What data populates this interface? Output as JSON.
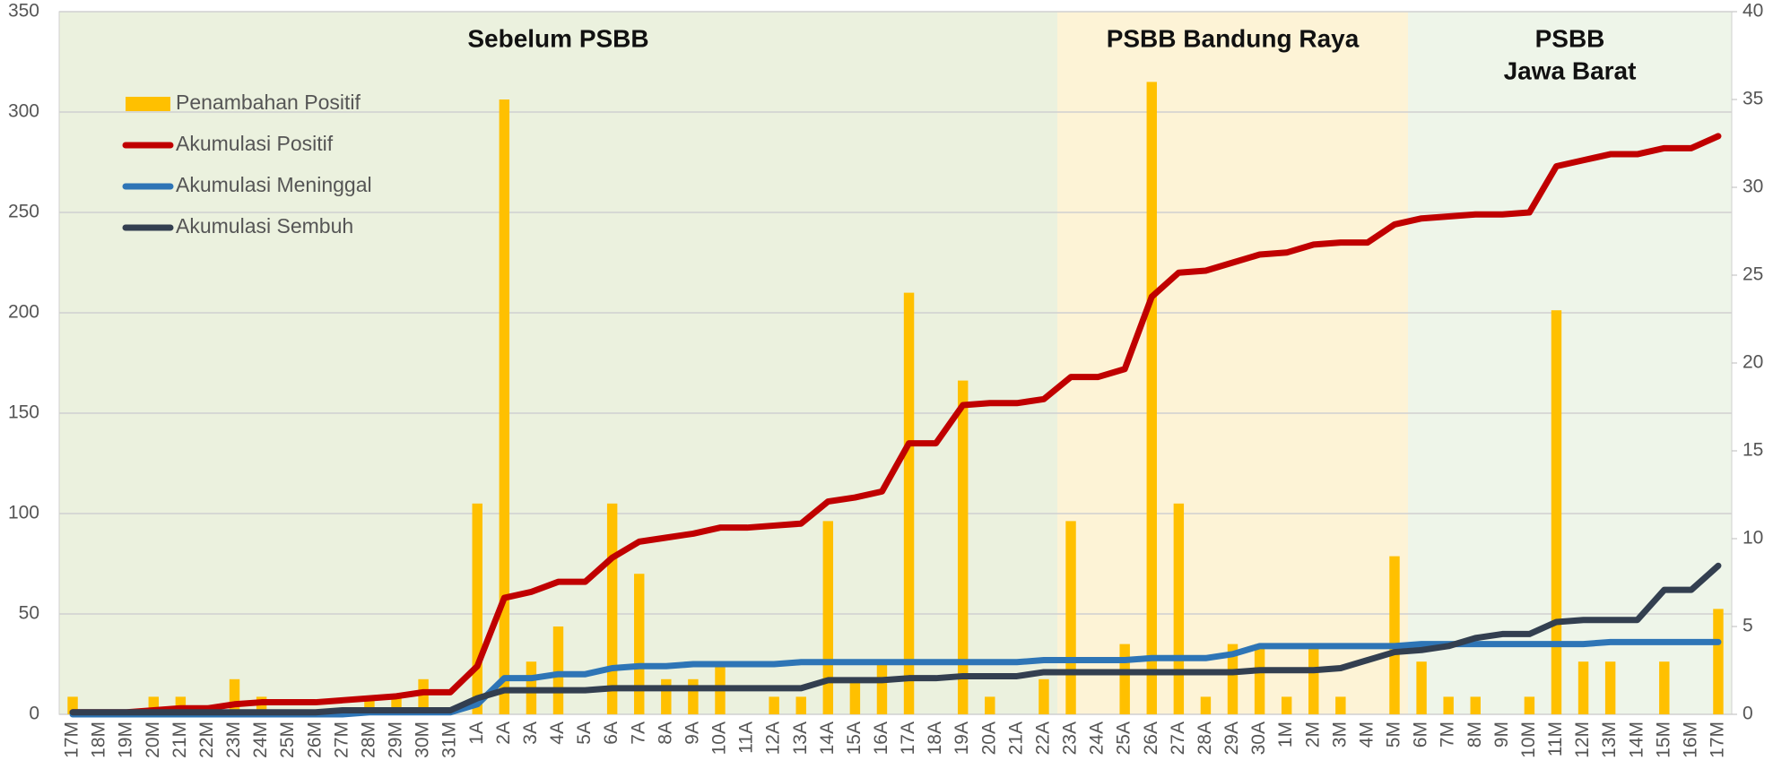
{
  "chart_data": {
    "type": "combo",
    "categories": [
      "17M",
      "18M",
      "19M",
      "20M",
      "21M",
      "22M",
      "23M",
      "24M",
      "25M",
      "26M",
      "27M",
      "28M",
      "29M",
      "30M",
      "31M",
      "1A",
      "2A",
      "3A",
      "4A",
      "5A",
      "6A",
      "7A",
      "8A",
      "9A",
      "10A",
      "11A",
      "12A",
      "13A",
      "14A",
      "15A",
      "16A",
      "17A",
      "18A",
      "19A",
      "20A",
      "21A",
      "22A",
      "23A",
      "24A",
      "25A",
      "26A",
      "27A",
      "28A",
      "29A",
      "30A",
      "1M",
      "2M",
      "3M",
      "4M",
      "5M",
      "6M",
      "7M",
      "8M",
      "9M",
      "10M",
      "11M",
      "12M",
      "13M",
      "14M",
      "15M",
      "16M",
      "17M"
    ],
    "series": [
      {
        "name": "Penambahan Positif",
        "type": "bar",
        "axis": "y2",
        "color": "#ffc000",
        "values": [
          1,
          0,
          0,
          1,
          1,
          0,
          2,
          1,
          0,
          0,
          0,
          1,
          1,
          2,
          0,
          12,
          35,
          3,
          5,
          0,
          12,
          8,
          2,
          2,
          3,
          0,
          1,
          1,
          11,
          2,
          3,
          24,
          0,
          19,
          1,
          0,
          2,
          11,
          0,
          4,
          36,
          12,
          1,
          4,
          4,
          1,
          4,
          1,
          0,
          9,
          3,
          1,
          1,
          0,
          1,
          23,
          3,
          3,
          0,
          3,
          0,
          6
        ]
      },
      {
        "name": "Akumulasi Positif",
        "type": "line",
        "color": "#c00000",
        "values": [
          1,
          1,
          1,
          2,
          3,
          3,
          5,
          6,
          6,
          6,
          7,
          8,
          9,
          11,
          11,
          24,
          58,
          61,
          66,
          66,
          78,
          86,
          88,
          90,
          93,
          93,
          94,
          95,
          106,
          108,
          111,
          135,
          135,
          154,
          155,
          155,
          157,
          168,
          168,
          172,
          208,
          220,
          221,
          225,
          229,
          230,
          234,
          235,
          235,
          244,
          247,
          248,
          249,
          249,
          250,
          273,
          276,
          279,
          279,
          282,
          282,
          288
        ]
      },
      {
        "name": "Akumulasi Meninggal",
        "type": "line",
        "color": "#2e75b6",
        "values": [
          0,
          0,
          0,
          0,
          0,
          0,
          0,
          0,
          0,
          0,
          0,
          1,
          1,
          1,
          1,
          5,
          18,
          18,
          20,
          20,
          23,
          24,
          24,
          25,
          25,
          25,
          25,
          26,
          26,
          26,
          26,
          26,
          26,
          26,
          26,
          26,
          27,
          27,
          27,
          27,
          28,
          28,
          28,
          30,
          34,
          34,
          34,
          34,
          34,
          34,
          35,
          35,
          35,
          35,
          35,
          35,
          35,
          36,
          36,
          36,
          36,
          36
        ]
      },
      {
        "name": "Akumulasi Sembuh",
        "type": "line",
        "color": "#333f50",
        "values": [
          1,
          1,
          1,
          1,
          1,
          1,
          1,
          1,
          1,
          1,
          2,
          2,
          2,
          2,
          2,
          8,
          12,
          12,
          12,
          12,
          13,
          13,
          13,
          13,
          13,
          13,
          13,
          13,
          17,
          17,
          17,
          18,
          18,
          19,
          19,
          19,
          21,
          21,
          21,
          21,
          21,
          21,
          21,
          21,
          22,
          22,
          22,
          23,
          27,
          31,
          32,
          34,
          38,
          40,
          40,
          46,
          47,
          47,
          47,
          62,
          62,
          74
        ]
      }
    ],
    "regions": [
      {
        "label": [
          "Sebelum PSBB"
        ],
        "start": 0,
        "end": 36,
        "color": "#ebf1de"
      },
      {
        "label": [
          "PSBB Bandung Raya"
        ],
        "start": 37,
        "end": 49,
        "color": "#fdf3d6"
      },
      {
        "label": [
          "PSBB",
          "Jawa Barat"
        ],
        "start": 50,
        "end": 61,
        "color": "#eef5e9"
      }
    ],
    "ylim": [
      0,
      350
    ],
    "yticks": [
      0,
      50,
      100,
      150,
      200,
      250,
      300,
      350
    ],
    "y2lim": [
      0,
      40
    ],
    "y2ticks": [
      0,
      5,
      10,
      15,
      20,
      25,
      30,
      35,
      40
    ],
    "grid": true,
    "legend": "upper left"
  }
}
